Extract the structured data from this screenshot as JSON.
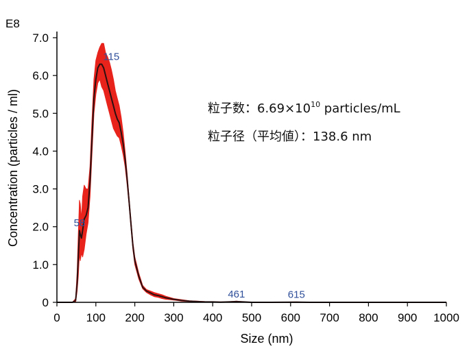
{
  "chart_data": {
    "type": "line",
    "exponent_label": "E8",
    "xlabel": "Size (nm)",
    "ylabel": "Concentration (particles / ml)",
    "xlim": [
      0,
      1000
    ],
    "ylim": [
      0,
      7.0
    ],
    "x_ticks": [
      0,
      100,
      200,
      300,
      400,
      500,
      600,
      700,
      800,
      900,
      1000
    ],
    "x_tick_labels": [
      "0",
      "100",
      "200",
      "300",
      "400",
      "500",
      "600",
      "700",
      "800",
      "900",
      "1000"
    ],
    "y_ticks": [
      0,
      1,
      2,
      3,
      4,
      5,
      6,
      7
    ],
    "y_tick_labels": [
      "0",
      "1.0",
      "2.0",
      "3.0",
      "4.0",
      "5.0",
      "6.0",
      "7.0"
    ],
    "grid": false,
    "colors": {
      "mean_line": "#2a1010",
      "error_band": "#e8231c",
      "peak_label": "#2f4f9a"
    },
    "series": [
      {
        "x": [
          0,
          40,
          48,
          52,
          55,
          58,
          60,
          63,
          66,
          70,
          75,
          80,
          85,
          90,
          95,
          100,
          105,
          110,
          115,
          120,
          125,
          130,
          135,
          140,
          145,
          150,
          155,
          160,
          165,
          170,
          175,
          180,
          185,
          190,
          195,
          200,
          210,
          220,
          230,
          240,
          250,
          260,
          270,
          280,
          290,
          300,
          320,
          340,
          360,
          380,
          400,
          420,
          440,
          461,
          480,
          500,
          550,
          615,
          650,
          700,
          800,
          900,
          1000
        ],
        "y": [
          0,
          0,
          0.05,
          0.5,
          1.2,
          1.9,
          1.8,
          1.7,
          1.9,
          2.2,
          2.3,
          2.5,
          3.2,
          4.3,
          5.4,
          5.9,
          6.2,
          6.3,
          6.3,
          6.2,
          6.0,
          5.8,
          5.6,
          5.4,
          5.2,
          5.0,
          4.85,
          4.75,
          4.5,
          4.2,
          3.8,
          3.3,
          2.7,
          2.1,
          1.5,
          1.1,
          0.7,
          0.4,
          0.3,
          0.25,
          0.2,
          0.18,
          0.15,
          0.12,
          0.1,
          0.08,
          0.05,
          0.03,
          0.02,
          0.01,
          0.01,
          0.005,
          0.01,
          0.02,
          0.01,
          0.0,
          0.0,
          0.005,
          0.0,
          0.0,
          0.0,
          0.0,
          0.0
        ],
        "y_upper": [
          0,
          0,
          0.1,
          0.8,
          1.8,
          2.7,
          2.6,
          2.2,
          2.8,
          3.1,
          3.0,
          3.0,
          3.6,
          4.8,
          5.9,
          6.4,
          6.6,
          6.75,
          6.85,
          6.85,
          6.6,
          6.5,
          6.35,
          6.15,
          5.9,
          5.6,
          5.4,
          5.2,
          4.9,
          4.5,
          4.0,
          3.45,
          2.8,
          2.2,
          1.6,
          1.2,
          0.78,
          0.45,
          0.34,
          0.3,
          0.26,
          0.23,
          0.2,
          0.16,
          0.13,
          0.1,
          0.07,
          0.04,
          0.03,
          0.02,
          0.015,
          0.01,
          0.015,
          0.03,
          0.015,
          0.005,
          0.005,
          0.01,
          0.005,
          0.0,
          0.0,
          0.0,
          0.0
        ],
        "y_lower": [
          0,
          0,
          0.0,
          0.3,
          0.7,
          1.3,
          1.1,
          1.3,
          1.2,
          1.4,
          1.8,
          2.1,
          2.8,
          3.9,
          5.0,
          5.5,
          5.8,
          5.9,
          5.7,
          5.6,
          5.4,
          5.2,
          5.0,
          4.8,
          4.6,
          4.5,
          4.4,
          4.35,
          4.15,
          3.9,
          3.6,
          3.15,
          2.6,
          2.0,
          1.4,
          1.0,
          0.62,
          0.36,
          0.26,
          0.2,
          0.15,
          0.13,
          0.1,
          0.08,
          0.07,
          0.06,
          0.03,
          0.02,
          0.01,
          0.005,
          0.005,
          0.0,
          0.005,
          0.01,
          0.005,
          0.0,
          0.0,
          0.0,
          0.0,
          0.0,
          0.0,
          0.0,
          0.0
        ]
      }
    ],
    "peak_labels": [
      {
        "text": "58",
        "x": 58,
        "y": 1.9
      },
      {
        "text": "115",
        "x": 115,
        "y": 6.3
      },
      {
        "text": "461",
        "x": 461,
        "y": 0.02
      },
      {
        "text": "615",
        "x": 615,
        "y": 0.005
      }
    ],
    "annotations": {
      "line1_prefix": "粒子数：6.69×10",
      "line1_sup": "10",
      "line1_suffix": " particles/mL",
      "line2": "粒子径（平均値）：138.6 nm"
    }
  }
}
